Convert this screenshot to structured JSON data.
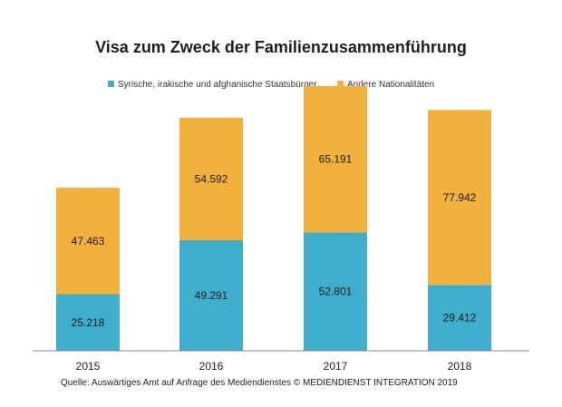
{
  "chart_data": {
    "type": "bar",
    "stacked": true,
    "title": "Visa zum Zweck der Familienzusammenführung",
    "xlabel": "",
    "ylabel": "",
    "categories": [
      "2015",
      "2016",
      "2017",
      "2018"
    ],
    "series": [
      {
        "name": "Syrische, irakische und afghanische Staatsbürger",
        "color": "#3faecc",
        "values": [
          25218,
          49291,
          52801,
          29412
        ],
        "labels": [
          "25.218",
          "49.291",
          "52.801",
          "29.412"
        ]
      },
      {
        "name": "Andere Nationalitäten",
        "color": "#f2b13d",
        "values": [
          47463,
          54592,
          65191,
          77942
        ],
        "labels": [
          "47.463",
          "54.592",
          "65.191",
          "77.942"
        ]
      }
    ],
    "ylim": [
      0,
      120000
    ],
    "grid": false,
    "legend_position": "top"
  },
  "source": "Quelle: Auswärtiges Amt auf Anfrage des Mediendienstes © MEDIENDIENST INTEGRATION 2019"
}
